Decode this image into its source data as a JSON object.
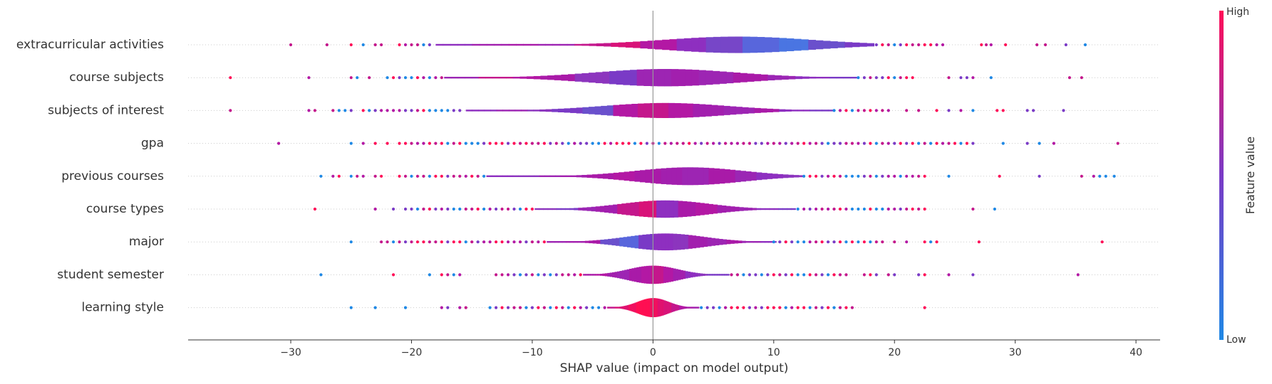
{
  "chart_data": {
    "type": "scatter",
    "subtype": "shap-violin-summary",
    "title": "",
    "xlabel": "SHAP value (impact on model output)",
    "ylabel": "",
    "xlim": [
      -38.5,
      42
    ],
    "xticks": [
      -30,
      -20,
      -10,
      0,
      10,
      20,
      30,
      40
    ],
    "xtick_labels": [
      "−30",
      "−20",
      "−10",
      "0",
      "10",
      "20",
      "30",
      "40"
    ],
    "grid": false,
    "features": [
      {
        "name": "extracurricular activities",
        "outliers": [
          -30,
          -27,
          -25,
          -24,
          -23,
          -22.5,
          -21,
          -20.5,
          -20,
          -19.5,
          -19,
          -18.5,
          18.5,
          19,
          19.5,
          20,
          20.5,
          21,
          21.5,
          22,
          22.5,
          23,
          23.5,
          24,
          27.2,
          27.6,
          28,
          29.2,
          31.8,
          32.5,
          34.2,
          35.8
        ],
        "core": [
          -18,
          18.3
        ],
        "peak": 7,
        "peak_width": 0.66,
        "colors": [
          "#8E2FC0",
          "#A21FAE",
          "#A91AA8",
          "#9D25B3",
          "#C4178C",
          "#D81378",
          "#B318A4",
          "#8E2FC0",
          "#7746C8",
          "#5866DC",
          "#4A75E2",
          "#6A50CC",
          "#7A3AC6"
        ]
      },
      {
        "name": "course subjects",
        "outliers": [
          -35,
          -28.5,
          -25,
          -24.5,
          -23.5,
          -22,
          -21.5,
          -21,
          -20.5,
          -20,
          -19.5,
          -19,
          -18.5,
          -18,
          -17.5,
          17,
          17.5,
          18,
          18.5,
          19,
          19.5,
          20,
          20.5,
          21,
          21.5,
          24.5,
          25.5,
          26,
          26.5,
          28,
          34.5,
          35.5
        ],
        "core": [
          -17.3,
          16.9
        ],
        "peak": 1,
        "peak_width": 0.7,
        "colors": [
          "#9B26B4",
          "#C4178C",
          "#B318A4",
          "#A91AA8",
          "#8C35BE",
          "#7A3AC6",
          "#9D25B3",
          "#A21FAE",
          "#9D25B3",
          "#A91AA8",
          "#9B26B4",
          "#8E2FC0",
          "#7A3AC6"
        ]
      },
      {
        "name": "subjects of interest",
        "outliers": [
          -35,
          -28.5,
          -28,
          -26.5,
          -26,
          -25.5,
          -25,
          -24,
          -23.5,
          -23,
          -22.5,
          -22,
          -21.5,
          -21,
          -20.5,
          -20,
          -19.5,
          -19,
          -18.5,
          -18,
          -17.5,
          -17,
          -16.5,
          -16,
          15,
          15.5,
          16,
          16.5,
          17,
          17.5,
          18,
          18.5,
          19,
          19.5,
          21,
          22,
          23.5,
          24.5,
          25.5,
          26.5,
          28.5,
          29,
          31,
          31.5,
          34
        ],
        "core": [
          -15.5,
          15
        ],
        "peak": 1,
        "peak_width": 0.6,
        "colors": [
          "#8E2FC0",
          "#9D25B3",
          "#8C35BE",
          "#7A3AC6",
          "#6A50CC",
          "#B318A4",
          "#C4178C",
          "#B318A4",
          "#A21FAE",
          "#9D25B3",
          "#A91AA8",
          "#8E2FC0",
          "#7A3AC6"
        ]
      },
      {
        "name": "gpa",
        "outliers": [
          -31,
          -25,
          -24,
          -23,
          -22,
          -21,
          -20.5,
          -20,
          -19.5,
          -19,
          -18.5,
          -18,
          -17.5,
          -17,
          -16.5,
          -16,
          -15.5,
          -15,
          -14.5,
          -14,
          -13.5,
          -13,
          -12.5,
          -12,
          -11.5,
          -11,
          -10.5,
          -10,
          -9.5,
          -9,
          -8.5,
          -8,
          -7.5,
          -7,
          -6.5,
          -6,
          -5.5,
          -5,
          -4.5,
          -4,
          -3.5,
          -3,
          -2.5,
          -2,
          -1.5,
          -1,
          -0.5,
          0,
          0.5,
          1,
          1.5,
          2,
          2.5,
          3,
          3.5,
          4,
          4.5,
          5,
          5.5,
          6,
          6.5,
          7,
          7.5,
          8,
          8.5,
          9,
          9.5,
          10,
          10.5,
          11,
          11.5,
          12,
          12.5,
          13,
          13.5,
          14,
          14.5,
          15,
          15.5,
          16,
          16.5,
          17,
          17.5,
          18,
          18.5,
          19,
          19.5,
          20,
          20.5,
          21,
          21.5,
          22,
          22.5,
          23,
          23.5,
          24,
          24.5,
          25,
          25.5,
          26,
          26.5,
          29,
          31,
          32,
          33.2,
          38.5
        ],
        "core": [
          0,
          0
        ],
        "peak": 6,
        "peak_width": 0.0,
        "colors": [
          "#8E2FC0"
        ]
      },
      {
        "name": "previous courses",
        "outliers": [
          -27.5,
          -26.5,
          -26,
          -25,
          -24.5,
          -24,
          -23,
          -22.5,
          -21,
          -20.5,
          -20,
          -19.5,
          -19,
          -18.5,
          -18,
          -17.5,
          -17,
          -16.5,
          -16,
          -15.5,
          -15,
          -14.5,
          -14,
          12.5,
          13,
          13.5,
          14,
          14.5,
          15,
          15.5,
          16,
          16.5,
          17,
          17.5,
          18,
          18.5,
          19,
          19.5,
          20,
          20.5,
          21,
          21.5,
          22,
          22.5,
          24.5,
          28.7,
          32,
          35.5,
          36.5,
          37,
          37.5,
          38.2
        ],
        "core": [
          -13.8,
          12.5
        ],
        "peak": 3,
        "peak_width": 0.72,
        "colors": [
          "#8E2FC0",
          "#8C35BE",
          "#9D25B3",
          "#A21FAE",
          "#A91AA8",
          "#B318A4",
          "#A91AA8",
          "#A21FAE",
          "#9D25B3",
          "#A91AA8",
          "#9B26B4",
          "#8E2FC0",
          "#8C35BE"
        ]
      },
      {
        "name": "course types",
        "outliers": [
          -28,
          -23,
          -21.5,
          -20.5,
          -20,
          -19.5,
          -19,
          -18.5,
          -18,
          -17.5,
          -17,
          -16.5,
          -16,
          -15.5,
          -15,
          -14.5,
          -14,
          -13.5,
          -13,
          -12.5,
          -12,
          -11.5,
          -11,
          -10.5,
          -10,
          12,
          12.5,
          13,
          13.5,
          14,
          14.5,
          15,
          15.5,
          16,
          16.5,
          17,
          17.5,
          18,
          18.5,
          19,
          19.5,
          20,
          20.5,
          21,
          21.5,
          22,
          22.5,
          26.5,
          28.3
        ],
        "core": [
          -9.8,
          11.8
        ],
        "peak": 1,
        "peak_width": 0.7,
        "colors": [
          "#8C35BE",
          "#7A3AC6",
          "#9B26B4",
          "#A21FAE",
          "#C4178C",
          "#D81378",
          "#8E2FC0",
          "#A91AA8",
          "#B318A4",
          "#A21FAE",
          "#9D25B3",
          "#8E2FC0",
          "#7A3AC6"
        ]
      },
      {
        "name": "major",
        "outliers": [
          -25,
          -22.5,
          -22,
          -21.5,
          -21,
          -20.5,
          -20,
          -19.5,
          -19,
          -18.5,
          -18,
          -17.5,
          -17,
          -16.5,
          -16,
          -15.5,
          -15,
          -14.5,
          -14,
          -13.5,
          -13,
          -12.5,
          -12,
          -11.5,
          -11,
          -10.5,
          -10,
          -9.5,
          -9,
          10,
          10.5,
          11,
          11.5,
          12,
          12.5,
          13,
          13.5,
          14,
          14.5,
          15,
          15.5,
          16,
          16.5,
          17,
          17.5,
          18,
          18.5,
          19,
          20,
          21,
          22.5,
          23,
          23.5,
          27,
          37.2
        ],
        "core": [
          -8.8,
          10.2
        ],
        "peak": 1,
        "peak_width": 0.68,
        "colors": [
          "#9D25B3",
          "#A21FAE",
          "#A91AA8",
          "#6A50CC",
          "#5866DC",
          "#7A3AC6",
          "#8E2FC0",
          "#8C35BE",
          "#A21FAE",
          "#9D25B3",
          "#A91AA8",
          "#9B26B4",
          "#8E2FC0"
        ]
      },
      {
        "name": "student semester",
        "outliers": [
          -27.5,
          -21.5,
          -18.5,
          -17.5,
          -17,
          -16.5,
          -16,
          -13,
          -12.5,
          -12,
          -11.5,
          -11,
          -10.5,
          -10,
          -9.5,
          -9,
          -8.5,
          -8,
          -7.5,
          -7,
          -6.5,
          -6,
          6.5,
          7,
          7.5,
          8,
          8.5,
          9,
          9.5,
          10,
          10.5,
          11,
          11.5,
          12,
          12.5,
          13,
          13.5,
          14,
          14.5,
          15,
          15.5,
          16,
          17.5,
          18,
          18.5,
          19.5,
          20,
          22,
          22.5,
          24.5,
          26.5,
          35.2
        ],
        "core": [
          -5.8,
          6.3
        ],
        "peak": 0,
        "peak_width": 0.74,
        "colors": [
          "#A91AA8",
          "#B318A4",
          "#A21FAE",
          "#9D25B3",
          "#A91AA8",
          "#B318A4",
          "#C4178C",
          "#B318A4",
          "#A21FAE",
          "#8E2FC0",
          "#8C35BE",
          "#7A3AC6",
          "#7A3AC6"
        ]
      },
      {
        "name": "learning style",
        "outliers": [
          -25,
          -23,
          -20.5,
          -17.5,
          -17,
          -16,
          -15.5,
          -13.5,
          -13,
          -12.5,
          -12,
          -11.5,
          -11,
          -10.5,
          -10,
          -9.5,
          -9,
          -8.5,
          -8,
          -7.5,
          -7,
          -6.5,
          -6,
          -5.5,
          -5,
          -4.5,
          -4,
          4,
          4.5,
          5,
          5.5,
          6,
          6.5,
          7,
          7.5,
          8,
          8.5,
          9,
          9.5,
          10,
          10.5,
          11,
          11.5,
          12,
          12.5,
          13,
          13.5,
          14,
          14.5,
          15,
          15.5,
          16,
          16.5,
          22.5
        ],
        "core": [
          -3.8,
          3.8
        ],
        "peak": 0,
        "peak_width": 0.78,
        "colors": [
          "#C4178C",
          "#D81378",
          "#E0116F",
          "#F0105F",
          "#FF0F52",
          "#FF0F52",
          "#F0105F",
          "#E0116F",
          "#D81378",
          "#C4178C",
          "#B318A4",
          "#A91AA8",
          "#A21FAE"
        ]
      }
    ],
    "colorbar": {
      "title": "Feature value",
      "high_label": "High",
      "low_label": "Low",
      "high_color": "#FF0D57",
      "mid_color": "#7A3AC6",
      "low_color": "#1E88E5"
    },
    "outlier_colors": [
      "#FF0D57",
      "#1E88E5",
      "#C4178C",
      "#7A3AC6",
      "#B318A4"
    ],
    "zero_line_color": "#999999"
  }
}
